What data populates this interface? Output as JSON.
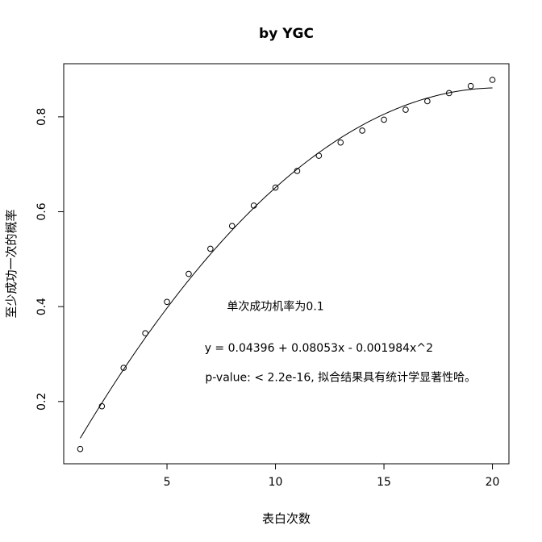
{
  "chart_data": {
    "type": "scatter",
    "title": "by YGC",
    "xlabel": "表白次数",
    "ylabel": "至少成功一次的概率",
    "xlim": [
      0.24,
      20.76
    ],
    "ylim": [
      0.0688,
      0.912
    ],
    "x_ticks": [
      5,
      10,
      15,
      20
    ],
    "y_ticks": [
      0.2,
      0.4,
      0.6,
      0.8
    ],
    "grid": false,
    "legend": "none",
    "series": [
      {
        "kind": "points",
        "marker": "open-circle",
        "x": [
          1,
          2,
          3,
          4,
          5,
          6,
          7,
          8,
          9,
          10,
          11,
          12,
          13,
          14,
          15,
          16,
          17,
          18,
          19,
          20
        ],
        "y": [
          0.1,
          0.19,
          0.271,
          0.344,
          0.41,
          0.469,
          0.522,
          0.57,
          0.613,
          0.651,
          0.686,
          0.718,
          0.746,
          0.771,
          0.794,
          0.815,
          0.833,
          0.85,
          0.865,
          0.878
        ]
      },
      {
        "kind": "fit-line",
        "model": "quadratic",
        "coefficients": [
          0.04396,
          0.08053,
          -0.001984
        ]
      }
    ],
    "annotations": [
      {
        "text": "单次成功机率为0.1",
        "x": 10.0,
        "y": 0.393
      },
      {
        "text": "y = 0.04396 + 0.08053x - 0.001984x^2",
        "x": 12.0,
        "y": 0.305
      },
      {
        "text": "p-value: < 2.2e-16, 拟合结果具有统计学显著性哈。",
        "x": 13.0,
        "y": 0.243
      }
    ]
  }
}
